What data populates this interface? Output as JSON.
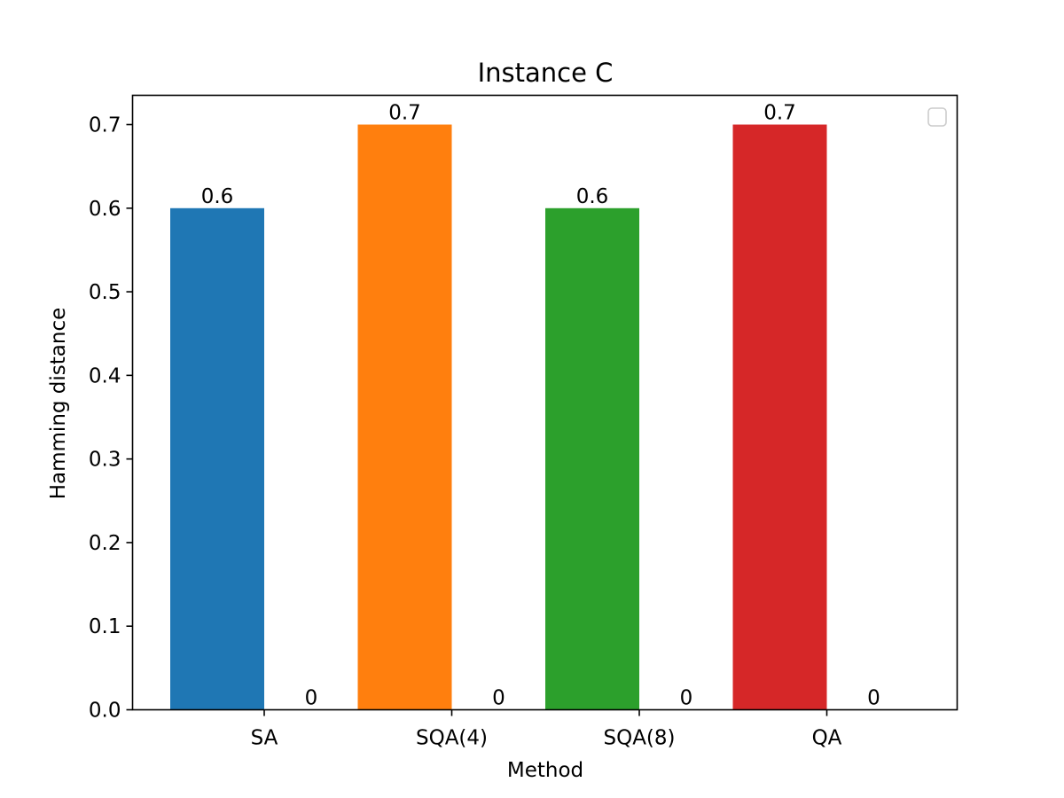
{
  "chart_data": {
    "type": "bar",
    "title": "Instance C",
    "xlabel": "Method",
    "ylabel": "Hamming distance",
    "categories": [
      "SA",
      "SQA(4)",
      "SQA(8)",
      "QA"
    ],
    "series": [
      {
        "values": [
          0.6,
          0.7,
          0.6,
          0.7
        ],
        "colors": [
          "#1f77b4",
          "#ff7f0e",
          "#2ca02c",
          "#d62728"
        ],
        "labels": [
          "0.6",
          "0.7",
          "0.6",
          "0.7"
        ]
      },
      {
        "values": [
          0,
          0,
          0,
          0
        ],
        "colors": [
          "#1f77b4",
          "#ff7f0e",
          "#2ca02c",
          "#d62728"
        ],
        "labels": [
          "0",
          "0",
          "0",
          "0"
        ]
      }
    ],
    "ylim": [
      0,
      0.735
    ],
    "yticks": [
      "0.0",
      "0.1",
      "0.2",
      "0.3",
      "0.4",
      "0.5",
      "0.6",
      "0.7"
    ],
    "grid": false,
    "legend": {
      "placement": "top-right",
      "entries": []
    }
  }
}
